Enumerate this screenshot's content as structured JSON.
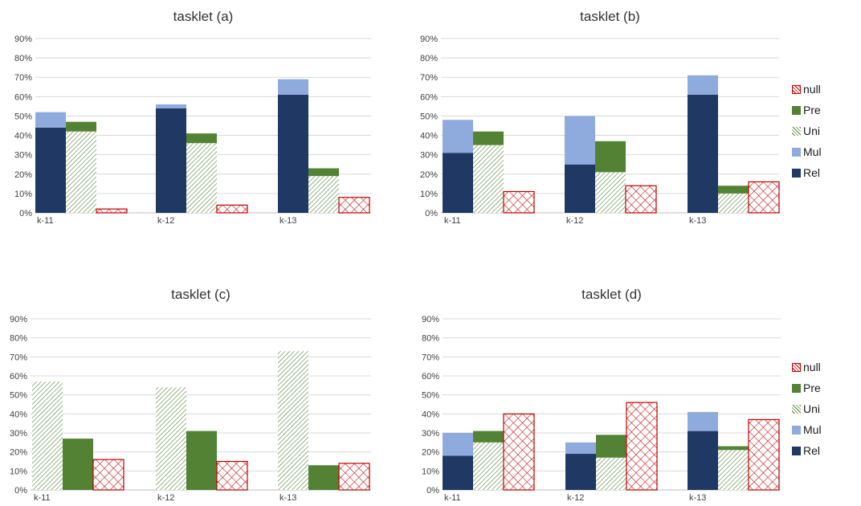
{
  "colors": {
    "Rel": "#1f3864",
    "Mul": "#8faadc",
    "Uni": "#548235",
    "Pre": "#548235",
    "null": "#c00000",
    "grid": "#d9d9d9",
    "axis_text": "#404040"
  },
  "legend": [
    "null",
    "Pre",
    "Uni",
    "Mul",
    "Rel"
  ],
  "chart_data": [
    {
      "type": "bar",
      "title": "tasklet (a)",
      "categories": [
        "k-11",
        "k-12",
        "k-13"
      ],
      "ylim": [
        0,
        0.9
      ],
      "yticks": [
        "0%",
        "10%",
        "20%",
        "30%",
        "40%",
        "50%",
        "60%",
        "70%",
        "80%",
        "90%"
      ],
      "grid": true,
      "stacks": [
        {
          "name": "Rel + Mul",
          "segments": [
            {
              "series": "Rel",
              "values": [
                0.44,
                0.54,
                0.61
              ]
            },
            {
              "series": "Mul",
              "values": [
                0.08,
                0.02,
                0.08
              ]
            }
          ]
        },
        {
          "name": "Uni + Pre",
          "segments": [
            {
              "series": "Uni",
              "values": [
                0.42,
                0.36,
                0.19
              ]
            },
            {
              "series": "Pre",
              "values": [
                0.05,
                0.05,
                0.04
              ]
            }
          ]
        },
        {
          "name": "null",
          "segments": [
            {
              "series": "null",
              "values": [
                0.02,
                0.04,
                0.08
              ]
            }
          ]
        }
      ]
    },
    {
      "type": "bar",
      "title": "tasklet (b)",
      "categories": [
        "k-11",
        "k-12",
        "k-13"
      ],
      "ylim": [
        0,
        0.9
      ],
      "yticks": [
        "0%",
        "10%",
        "20%",
        "30%",
        "40%",
        "50%",
        "60%",
        "70%",
        "80%",
        "90%"
      ],
      "grid": true,
      "legend_position": "right",
      "stacks": [
        {
          "name": "Rel + Mul",
          "segments": [
            {
              "series": "Rel",
              "values": [
                0.31,
                0.25,
                0.61
              ]
            },
            {
              "series": "Mul",
              "values": [
                0.17,
                0.25,
                0.1
              ]
            }
          ]
        },
        {
          "name": "Uni + Pre",
          "segments": [
            {
              "series": "Uni",
              "values": [
                0.35,
                0.21,
                0.1
              ]
            },
            {
              "series": "Pre",
              "values": [
                0.07,
                0.16,
                0.04
              ]
            }
          ]
        },
        {
          "name": "null",
          "segments": [
            {
              "series": "null",
              "values": [
                0.11,
                0.14,
                0.16
              ]
            }
          ]
        }
      ]
    },
    {
      "type": "bar",
      "title": "tasklet (c)",
      "categories": [
        "k-11",
        "k-12",
        "k-13"
      ],
      "ylim": [
        0,
        0.9
      ],
      "yticks": [
        "0%",
        "10%",
        "20%",
        "30%",
        "40%",
        "50%",
        "60%",
        "70%",
        "80%",
        "90%"
      ],
      "grid": true,
      "stacks": [
        {
          "name": "Uni",
          "segments": [
            {
              "series": "Uni",
              "values": [
                0.57,
                0.54,
                0.73
              ]
            }
          ]
        },
        {
          "name": "Pre",
          "segments": [
            {
              "series": "Pre",
              "values": [
                0.27,
                0.31,
                0.13
              ]
            }
          ]
        },
        {
          "name": "null",
          "segments": [
            {
              "series": "null",
              "values": [
                0.16,
                0.15,
                0.14
              ]
            }
          ]
        }
      ]
    },
    {
      "type": "bar",
      "title": "tasklet (d)",
      "categories": [
        "k-11",
        "k-12",
        "k-13"
      ],
      "ylim": [
        0,
        0.9
      ],
      "yticks": [
        "0%",
        "10%",
        "20%",
        "30%",
        "40%",
        "50%",
        "60%",
        "70%",
        "80%",
        "90%"
      ],
      "grid": true,
      "legend_position": "right",
      "stacks": [
        {
          "name": "Rel + Mul",
          "segments": [
            {
              "series": "Rel",
              "values": [
                0.18,
                0.19,
                0.31
              ]
            },
            {
              "series": "Mul",
              "values": [
                0.12,
                0.06,
                0.1
              ]
            }
          ]
        },
        {
          "name": "Uni + Pre",
          "segments": [
            {
              "series": "Uni",
              "values": [
                0.25,
                0.17,
                0.21
              ]
            },
            {
              "series": "Pre",
              "values": [
                0.06,
                0.12,
                0.02
              ]
            }
          ]
        },
        {
          "name": "null",
          "segments": [
            {
              "series": "null",
              "values": [
                0.4,
                0.46,
                0.37
              ]
            }
          ]
        }
      ]
    }
  ]
}
